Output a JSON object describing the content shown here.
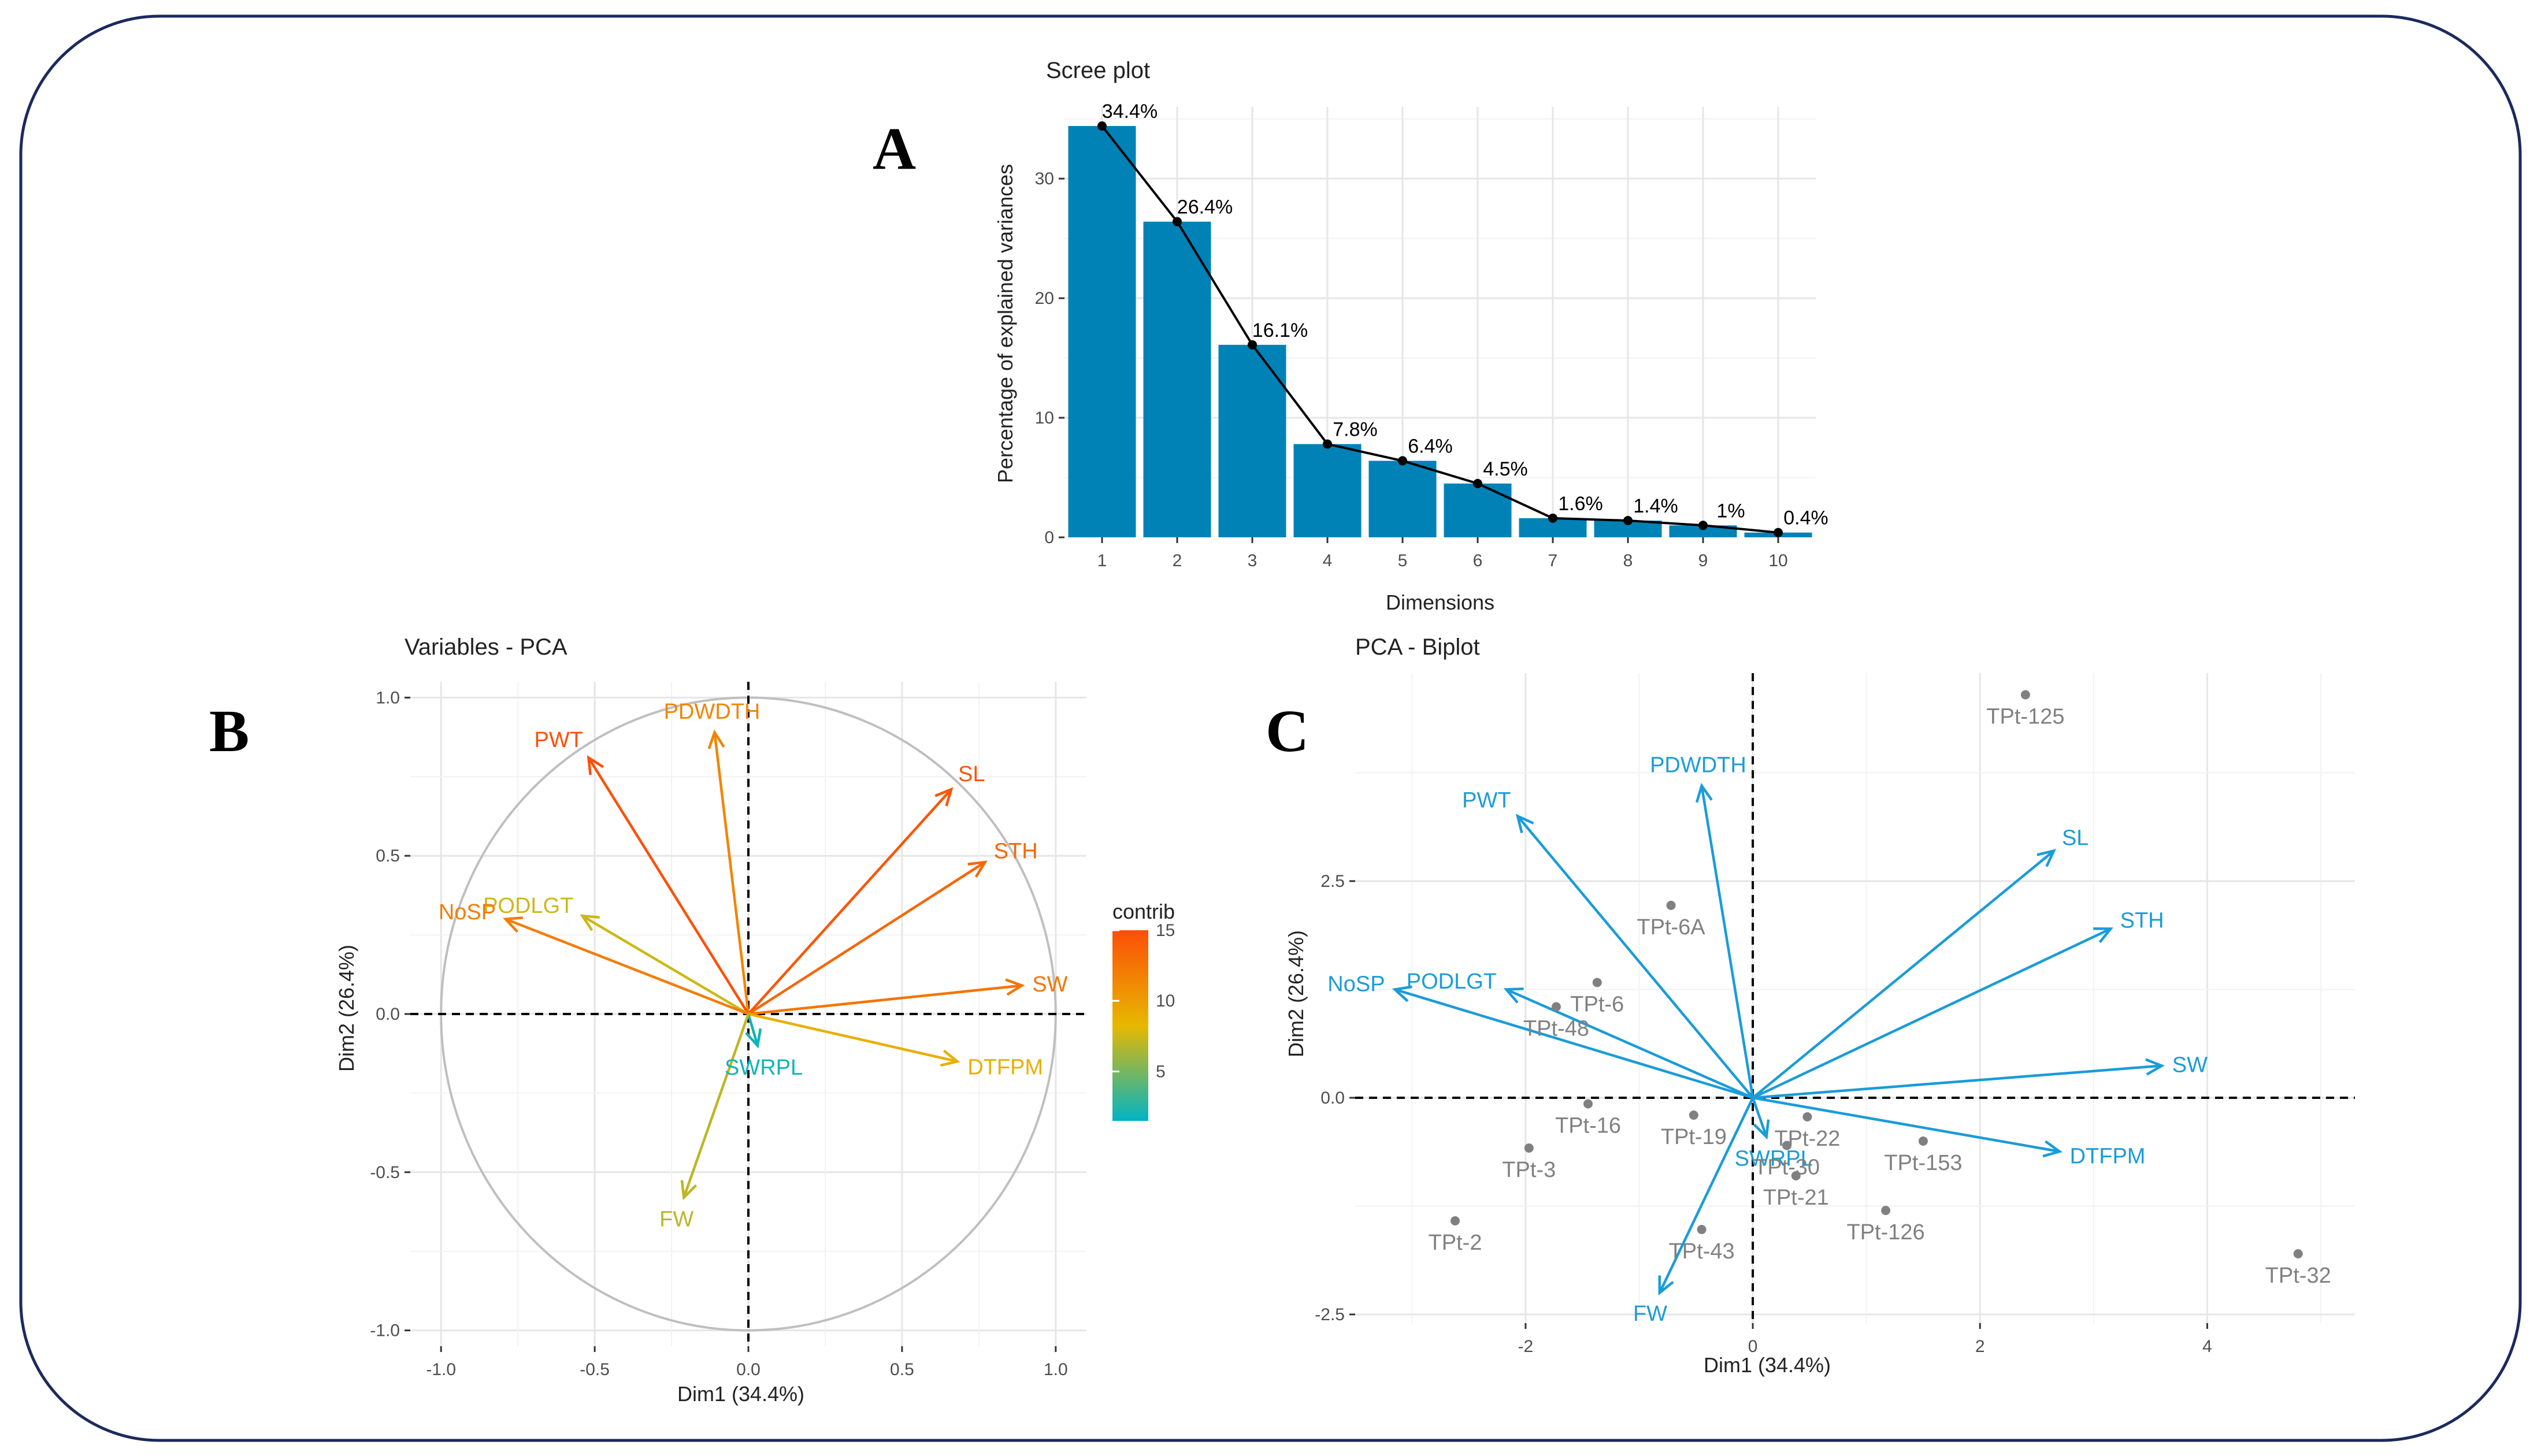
{
  "colors": {
    "bar": "#0082B7",
    "biplot_var": "#1A9CD8",
    "individuals": "#808080",
    "frame": "#1B2A5E",
    "contrib_low": "#00B4C5",
    "contrib_mid": "#E7B800",
    "contrib_high": "#FC4E07"
  },
  "chart_data": [
    {
      "id": "A",
      "panel_letter": "A",
      "type": "bar",
      "title": "Scree plot",
      "xlabel": "Dimensions",
      "ylabel": "Percentage of explained variances",
      "categories": [
        "1",
        "2",
        "3",
        "4",
        "5",
        "6",
        "7",
        "8",
        "9",
        "10"
      ],
      "values": [
        34.4,
        26.4,
        16.1,
        7.8,
        6.4,
        4.5,
        1.6,
        1.4,
        1.0,
        0.4
      ],
      "value_labels": [
        "34.4%",
        "26.4%",
        "16.1%",
        "7.8%",
        "6.4%",
        "4.5%",
        "1.6%",
        "1.4%",
        "1%",
        "0.4%"
      ],
      "line_overlay": true,
      "ylim": [
        0,
        36
      ],
      "yticks": [
        0,
        10,
        20,
        30
      ],
      "grid": true
    },
    {
      "id": "B",
      "panel_letter": "B",
      "type": "scatter",
      "subtype": "pca-variable-correlation-circle",
      "title": "Variables - PCA",
      "xlabel": "Dim1 (34.4%)",
      "ylabel": "Dim2 (26.4%)",
      "xlim": [
        -1.1,
        1.1
      ],
      "ylim": [
        -1.05,
        1.05
      ],
      "xticks": [
        -1.0,
        -0.5,
        0.0,
        0.5,
        1.0
      ],
      "xtick_labels": [
        "-1.0",
        "-0.5",
        "0.0",
        "0.5",
        "1.0"
      ],
      "yticks": [
        -1.0,
        -0.5,
        0.0,
        0.5,
        1.0
      ],
      "ytick_labels": [
        "-1.0",
        "-0.5",
        "0.0",
        "0.5",
        "1.0"
      ],
      "legend": {
        "title": "contrib",
        "position": "right",
        "ticks": [
          5,
          10,
          15
        ],
        "range": [
          1.5,
          15
        ]
      },
      "variables": [
        {
          "name": "PDWDTH",
          "x": -0.11,
          "y": 0.89,
          "contrib": 11.5
        },
        {
          "name": "PWT",
          "x": -0.52,
          "y": 0.81,
          "contrib": 14.8
        },
        {
          "name": "SL",
          "x": 0.66,
          "y": 0.71,
          "contrib": 14.5
        },
        {
          "name": "STH",
          "x": 0.77,
          "y": 0.48,
          "contrib": 13.5
        },
        {
          "name": "PODLGT",
          "x": -0.54,
          "y": 0.31,
          "contrib": 7.5
        },
        {
          "name": "NoSP",
          "x": -0.79,
          "y": 0.3,
          "contrib": 12.0
        },
        {
          "name": "SW",
          "x": 0.89,
          "y": 0.09,
          "contrib": 12.5
        },
        {
          "name": "DTFPM",
          "x": 0.68,
          "y": -0.15,
          "contrib": 8.8
        },
        {
          "name": "SWRPL",
          "x": 0.03,
          "y": -0.1,
          "contrib": 2.0
        },
        {
          "name": "FW",
          "x": -0.21,
          "y": -0.58,
          "contrib": 7.0
        }
      ]
    },
    {
      "id": "C",
      "panel_letter": "C",
      "type": "scatter",
      "subtype": "pca-biplot",
      "title": "PCA - Biplot",
      "xlabel": "Dim1 (34.4%)",
      "ylabel": "Dim2 (26.4%)",
      "xlim": [
        -3.5,
        5.3
      ],
      "ylim": [
        -2.6,
        4.9
      ],
      "xticks": [
        -2,
        0,
        2,
        4
      ],
      "xtick_labels": [
        "-2",
        "0",
        "2",
        "4"
      ],
      "yticks": [
        -2.5,
        0.0,
        2.5
      ],
      "ytick_labels": [
        "-2.5",
        "0.0",
        "2.5"
      ],
      "variables": [
        {
          "name": "PWT",
          "x": -2.07,
          "y": 3.25
        },
        {
          "name": "PDWDTH",
          "x": -0.45,
          "y": 3.6
        },
        {
          "name": "SL",
          "x": 2.65,
          "y": 2.85
        },
        {
          "name": "STH",
          "x": 3.15,
          "y": 1.95
        },
        {
          "name": "PODLGT",
          "x": -2.17,
          "y": 1.25
        },
        {
          "name": "NoSP",
          "x": -3.15,
          "y": 1.25
        },
        {
          "name": "SW",
          "x": 3.6,
          "y": 0.37
        },
        {
          "name": "DTFPM",
          "x": 2.7,
          "y": -0.62
        },
        {
          "name": "SWRPL",
          "x": 0.12,
          "y": -0.45
        },
        {
          "name": "FW",
          "x": -0.82,
          "y": -2.25
        }
      ],
      "individuals": [
        {
          "name": "TPt-125",
          "x": 2.4,
          "y": 4.65
        },
        {
          "name": "TPt-6A",
          "x": -0.72,
          "y": 2.22
        },
        {
          "name": "TPt-6",
          "x": -1.37,
          "y": 1.33
        },
        {
          "name": "TPt-48",
          "x": -1.73,
          "y": 1.05
        },
        {
          "name": "TPt-19",
          "x": -0.52,
          "y": -0.2
        },
        {
          "name": "TPt-22",
          "x": 0.48,
          "y": -0.22
        },
        {
          "name": "TPt-153",
          "x": 1.5,
          "y": -0.5
        },
        {
          "name": "TPt-16",
          "x": -1.45,
          "y": -0.07
        },
        {
          "name": "TPt-30",
          "x": 0.3,
          "y": -0.55
        },
        {
          "name": "TPt-21",
          "x": 0.38,
          "y": -0.9
        },
        {
          "name": "TPt-3",
          "x": -1.97,
          "y": -0.58
        },
        {
          "name": "TPt-2",
          "x": -2.62,
          "y": -1.42
        },
        {
          "name": "TPt-126",
          "x": 1.17,
          "y": -1.3
        },
        {
          "name": "TPt-43",
          "x": -0.45,
          "y": -1.52
        },
        {
          "name": "TPt-32",
          "x": 4.8,
          "y": -1.8
        }
      ]
    }
  ]
}
